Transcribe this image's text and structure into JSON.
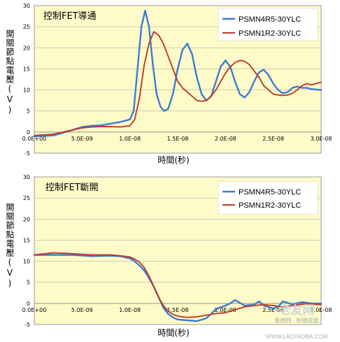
{
  "chart_data": [
    {
      "type": "line",
      "title": "控制FET導通",
      "ylabel": "開關節點電壓(V)",
      "xlabel": "時間(秒)",
      "xlim": [
        0,
        3e-08
      ],
      "ylim": [
        -5,
        30
      ],
      "xticks": [
        "0.0E+00",
        "5.0E-09",
        "1.0E-08",
        "1.5E-08",
        "2.0E-08",
        "2.5E-08",
        "3.0E-08"
      ],
      "yticks": [
        "-5",
        "0",
        "5",
        "10",
        "15",
        "20",
        "25",
        "30"
      ],
      "plot_background": "#fefbc8",
      "legend_position": "top-right",
      "series": [
        {
          "name": "PSMN4R5-30YLC",
          "color": "#3a7bd5",
          "x": [
            0,
            2e-09,
            4e-09,
            5e-09,
            6e-09,
            7e-09,
            8e-09,
            9e-09,
            1e-08,
            1.04e-08,
            1.08e-08,
            1.12e-08,
            1.16e-08,
            1.2e-08,
            1.24e-08,
            1.28e-08,
            1.32e-08,
            1.36e-08,
            1.4e-08,
            1.45e-08,
            1.5e-08,
            1.55e-08,
            1.6e-08,
            1.65e-08,
            1.7e-08,
            1.75e-08,
            1.8e-08,
            1.85e-08,
            1.9e-08,
            1.95e-08,
            2e-08,
            2.05e-08,
            2.1e-08,
            2.15e-08,
            2.2e-08,
            2.25e-08,
            2.3e-08,
            2.35e-08,
            2.4e-08,
            2.45e-08,
            2.5e-08,
            2.55e-08,
            2.6e-08,
            2.65e-08,
            2.7e-08,
            2.75e-08,
            2.8e-08,
            2.85e-08,
            2.9e-08,
            2.95e-08,
            3e-08
          ],
          "y": [
            -1,
            -0.8,
            0.5,
            1.2,
            1.5,
            1.6,
            2,
            2.4,
            3,
            5,
            15,
            25,
            28.8,
            25,
            16,
            9,
            6,
            5,
            5.5,
            9,
            15,
            19.5,
            21,
            18.5,
            13,
            9,
            7.5,
            8.5,
            12,
            15.5,
            17,
            15.5,
            12,
            9,
            8.2,
            9.5,
            12,
            14.2,
            14.8,
            13.5,
            11.5,
            10,
            9.2,
            9.5,
            10.5,
            10.8,
            10.5,
            10.5,
            10.2,
            10.1,
            10
          ],
          "dashes": [
            [
              1.92e-08,
              1.98e-08,
              1.8
            ],
            [
              2.05e-08,
              2.1e-08,
              1.0
            ]
          ]
        },
        {
          "name": "PSMN1R2-30YLC",
          "color": "#c0392b",
          "x": [
            0,
            2e-09,
            4e-09,
            5e-09,
            6e-09,
            7e-09,
            8e-09,
            9e-09,
            1e-08,
            1.05e-08,
            1.1e-08,
            1.15e-08,
            1.2e-08,
            1.25e-08,
            1.3e-08,
            1.35e-08,
            1.4e-08,
            1.45e-08,
            1.5e-08,
            1.55e-08,
            1.6e-08,
            1.65e-08,
            1.7e-08,
            1.75e-08,
            1.8e-08,
            1.85e-08,
            1.9e-08,
            1.95e-08,
            2e-08,
            2.05e-08,
            2.1e-08,
            2.15e-08,
            2.2e-08,
            2.25e-08,
            2.3e-08,
            2.35e-08,
            2.4e-08,
            2.45e-08,
            2.5e-08,
            2.55e-08,
            2.6e-08,
            2.65e-08,
            2.7e-08,
            2.75e-08,
            2.8e-08,
            2.85e-08,
            2.9e-08,
            2.95e-08,
            3e-08
          ],
          "y": [
            -0.8,
            -0.5,
            0.5,
            1,
            1.2,
            1.3,
            1.3,
            1.2,
            1.5,
            3,
            8,
            16,
            21,
            23.8,
            23,
            21,
            18,
            15,
            12,
            10.5,
            9.5,
            8.5,
            7.5,
            7.3,
            7.5,
            8.5,
            10,
            12,
            14,
            15.5,
            16.5,
            17,
            16.8,
            16,
            14.5,
            13,
            11,
            10,
            9,
            8.8,
            8.7,
            8.8,
            9.2,
            10,
            11,
            11.5,
            11.2,
            11.5,
            11.8
          ]
        }
      ]
    },
    {
      "type": "line",
      "title": "控制FET斷開",
      "ylabel": "開關節點電壓(V)",
      "xlabel": "時間(秒)",
      "xlim": [
        0,
        3e-08
      ],
      "ylim": [
        -5,
        30
      ],
      "xticks": [
        "0.0E+00",
        "5.0E-09",
        "1.0E-08",
        "1.5E-08",
        "2.0E-08",
        "2.5E-08",
        "3.0E-08"
      ],
      "yticks": [
        "-5",
        "0",
        "5",
        "10",
        "15",
        "20",
        "25",
        "30"
      ],
      "plot_background": "#fefbc8",
      "legend_position": "top-right",
      "series": [
        {
          "name": "PSMN4R5-30YLC",
          "color": "#3a7bd5",
          "x": [
            0,
            2e-09,
            4e-09,
            6e-09,
            8e-09,
            9e-09,
            1e-08,
            1.05e-08,
            1.1e-08,
            1.15e-08,
            1.2e-08,
            1.25e-08,
            1.3e-08,
            1.35e-08,
            1.4e-08,
            1.45e-08,
            1.5e-08,
            1.6e-08,
            1.7e-08,
            1.8e-08,
            1.85e-08,
            1.9e-08,
            2e-08,
            2.05e-08,
            2.1e-08,
            2.2e-08,
            2.3e-08,
            2.35e-08,
            2.4e-08,
            2.5e-08,
            2.55e-08,
            2.6e-08,
            2.7e-08,
            2.8e-08,
            2.9e-08,
            3e-08
          ],
          "y": [
            11.5,
            11.5,
            11.5,
            11.2,
            11.3,
            11.2,
            10.7,
            10,
            9,
            7.8,
            6,
            4,
            1.5,
            -1,
            -2.5,
            -3.3,
            -3.8,
            -4,
            -4.2,
            -3.5,
            -2.5,
            -1.3,
            -0.5,
            0,
            0.8,
            -0.5,
            -0.3,
            0.5,
            -0.5,
            -1.2,
            -0.8,
            0.5,
            -0.2,
            0.3,
            0,
            0
          ]
        },
        {
          "name": "PSMN1R2-30YLC",
          "color": "#c0392b",
          "x": [
            0,
            2e-09,
            4e-09,
            6e-09,
            8e-09,
            9e-09,
            1e-08,
            1.05e-08,
            1.1e-08,
            1.15e-08,
            1.2e-08,
            1.25e-08,
            1.3e-08,
            1.35e-08,
            1.4e-08,
            1.45e-08,
            1.5e-08,
            1.55e-08,
            1.6e-08,
            1.7e-08,
            1.8e-08,
            1.9e-08,
            2e-08,
            2.1e-08,
            2.2e-08,
            2.3e-08,
            2.4e-08,
            2.5e-08,
            2.6e-08,
            2.7e-08,
            2.8e-08,
            2.9e-08,
            3e-08
          ],
          "y": [
            11.5,
            12,
            11.8,
            11.5,
            11.5,
            11.3,
            11,
            10.5,
            9.8,
            8.5,
            6.5,
            4,
            1.5,
            -0.5,
            -1.8,
            -2.6,
            -3,
            -3.2,
            -3.3,
            -3.2,
            -2.8,
            -2.4,
            -2.2,
            -1.5,
            -0.8,
            -0.5,
            -0.3,
            -0.5,
            -0.8,
            -0.5,
            -0.2,
            -0.2,
            -0.3
          ]
        }
      ]
    }
  ],
  "watermark": {
    "brand": "老友网",
    "tagline": "集微网 · 积微成著",
    "url": "WWW.LAOYAOBA.COM"
  }
}
